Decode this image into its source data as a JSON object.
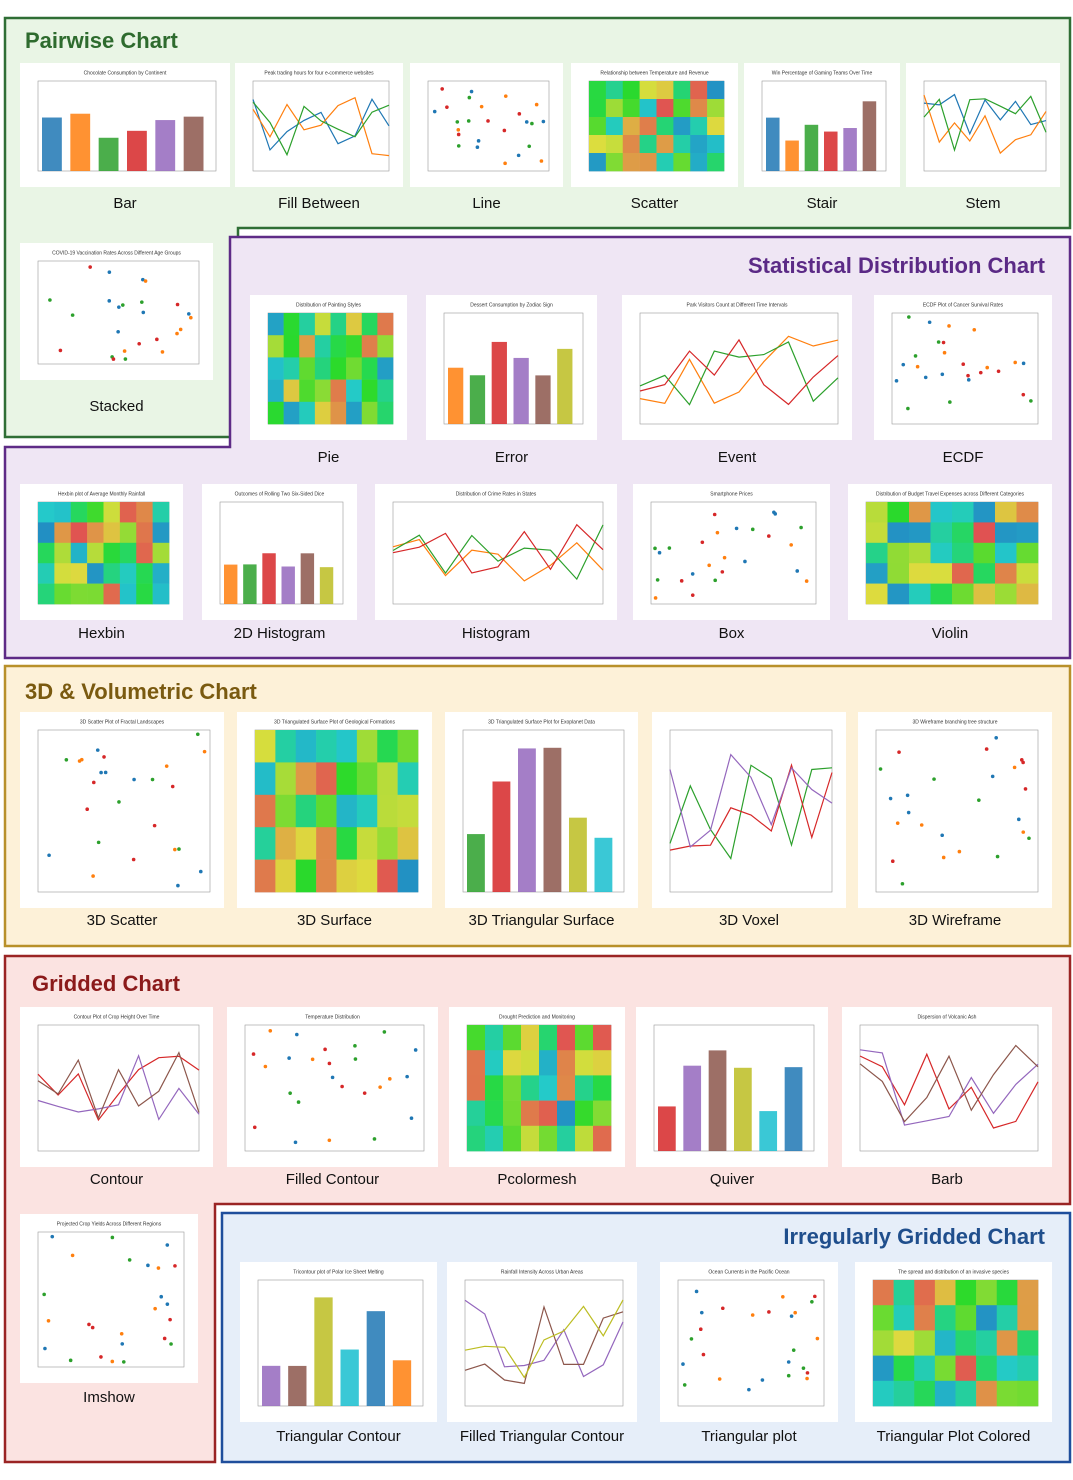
{
  "sections": [
    {
      "title": "Pairwise Chart",
      "items": [
        {
          "label": "Bar",
          "title": "Chocolate Consumption by Continent"
        },
        {
          "label": "Fill Between",
          "title": "Peak trading hours for four e-commerce websites"
        },
        {
          "label": "Line"
        },
        {
          "label": "Scatter",
          "title": "Relationship between Temperature and Revenue"
        },
        {
          "label": "Stair",
          "title": "Win Percentage of Gaming Teams Over Time"
        },
        {
          "label": "Stem"
        },
        {
          "label": "Stacked",
          "title": "COVID-19 Vaccination Rates Across Different Age Groups"
        }
      ]
    },
    {
      "title": "Statistical Distribution Chart",
      "items": [
        {
          "label": "Pie",
          "title": "Distribution of Painting Styles"
        },
        {
          "label": "Error",
          "title": "Dessert Consumption by Zodiac Sign"
        },
        {
          "label": "Event",
          "title": "Park Visitors Count at Different Time Intervals"
        },
        {
          "label": "ECDF",
          "title": "ECDF Plot of Cancer Survival Rates"
        },
        {
          "label": "Hexbin",
          "title": "Hexbin plot of Average Monthly Rainfall"
        },
        {
          "label": "2D Histogram",
          "title": "Outcomes of Rolling Two Six-Sided Dice"
        },
        {
          "label": "Histogram",
          "title": "Distribution of Crime Rates in States"
        },
        {
          "label": "Box",
          "title": "Smartphone Prices"
        },
        {
          "label": "Violin",
          "title": "Distribution of Budget Travel Expenses across Different Categories"
        }
      ]
    },
    {
      "title": "3D & Volumetric Chart",
      "items": [
        {
          "label": "3D Scatter",
          "title": "3D Scatter Plot of Fractal Landscapes"
        },
        {
          "label": "3D Surface",
          "title": "3D Triangulated Surface Plot of Geological Formations"
        },
        {
          "label": "3D Triangular Surface",
          "title": "3D Triangulated Surface Plot for Exoplanet Data"
        },
        {
          "label": "3D Voxel"
        },
        {
          "label": "3D Wireframe",
          "title": "3D Wireframe branching tree structure"
        }
      ]
    },
    {
      "title": "Gridded Chart",
      "items": [
        {
          "label": "Contour",
          "title": "Contour Plot of Crop Height Over Time"
        },
        {
          "label": "Filled Contour",
          "title": "Temperature Distribution"
        },
        {
          "label": "Pcolormesh",
          "title": "Drought Prediction and Monitoring"
        },
        {
          "label": "Quiver"
        },
        {
          "label": "Barb",
          "title": "Dispersion of Volcanic Ash"
        },
        {
          "label": "Imshow",
          "title": "Projected Crop Yields Across Different Regions"
        }
      ]
    },
    {
      "title": "Irregularly Gridded Chart",
      "items": [
        {
          "label": "Triangular Contour",
          "title": "Tricontour plot of Polar Ice Sheet Melting"
        },
        {
          "label": "Filled Triangular Contour",
          "title": "Rainfall Intensity Across Urban Areas"
        },
        {
          "label": "Triangular plot",
          "title": "Ocean Currents in the Pacific Ocean"
        },
        {
          "label": "Triangular Plot Colored",
          "title": "The spread and distribution of an invasive species"
        }
      ]
    }
  ]
}
